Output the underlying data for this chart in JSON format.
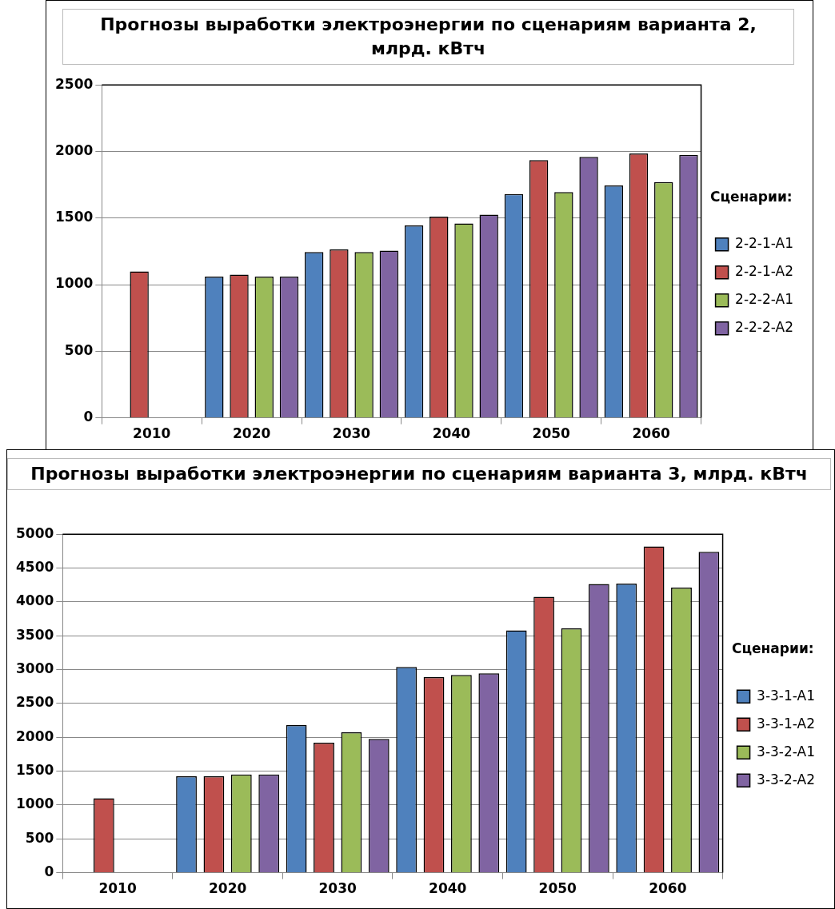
{
  "chart_data": [
    {
      "type": "bar",
      "title": "Прогнозы выработки электроэнергии по сценариям варианта 2, млрд. кВтч",
      "legend_title": "Сценарии:",
      "legend": "right",
      "grid": "y",
      "categories": [
        "2010",
        "2020",
        "2030",
        "2040",
        "2050",
        "2060"
      ],
      "ylim": [
        0,
        2500
      ],
      "yticks": [
        0,
        500,
        1000,
        1500,
        2000,
        2500
      ],
      "series": [
        {
          "name": "2-2-1-A1",
          "color": "#4f81bd",
          "values": [
            null,
            1060,
            1245,
            1445,
            1680,
            1745
          ]
        },
        {
          "name": "2-2-1-A2",
          "color": "#c0504d",
          "values": [
            1100,
            1075,
            1265,
            1510,
            1935,
            1985
          ]
        },
        {
          "name": "2-2-2-A1",
          "color": "#9bbb59",
          "values": [
            null,
            1060,
            1245,
            1460,
            1695,
            1770
          ]
        },
        {
          "name": "2-2-2-A2",
          "color": "#8064a2",
          "values": [
            null,
            1060,
            1255,
            1525,
            1960,
            1975
          ]
        }
      ]
    },
    {
      "type": "bar",
      "title": "Прогнозы выработки электроэнергии по сценариям варианта 3, млрд. кВтч",
      "legend_title": "Сценарии:",
      "legend": "right",
      "grid": "y",
      "categories": [
        "2010",
        "2020",
        "2030",
        "2040",
        "2050",
        "2060"
      ],
      "ylim": [
        0,
        5000
      ],
      "yticks": [
        0,
        500,
        1000,
        1500,
        2000,
        2500,
        3000,
        3500,
        4000,
        4500,
        5000
      ],
      "series": [
        {
          "name": "3-3-1-A1",
          "color": "#4f81bd",
          "values": [
            null,
            1425,
            2180,
            3040,
            3580,
            4270
          ]
        },
        {
          "name": "3-3-1-A2",
          "color": "#c0504d",
          "values": [
            1100,
            1425,
            1920,
            2890,
            4075,
            4820
          ]
        },
        {
          "name": "3-3-2-A1",
          "color": "#9bbb59",
          "values": [
            null,
            1450,
            2075,
            2920,
            3610,
            4210
          ]
        },
        {
          "name": "3-3-2-A2",
          "color": "#8064a2",
          "values": [
            null,
            1450,
            1975,
            2945,
            4265,
            4740
          ]
        }
      ]
    }
  ]
}
